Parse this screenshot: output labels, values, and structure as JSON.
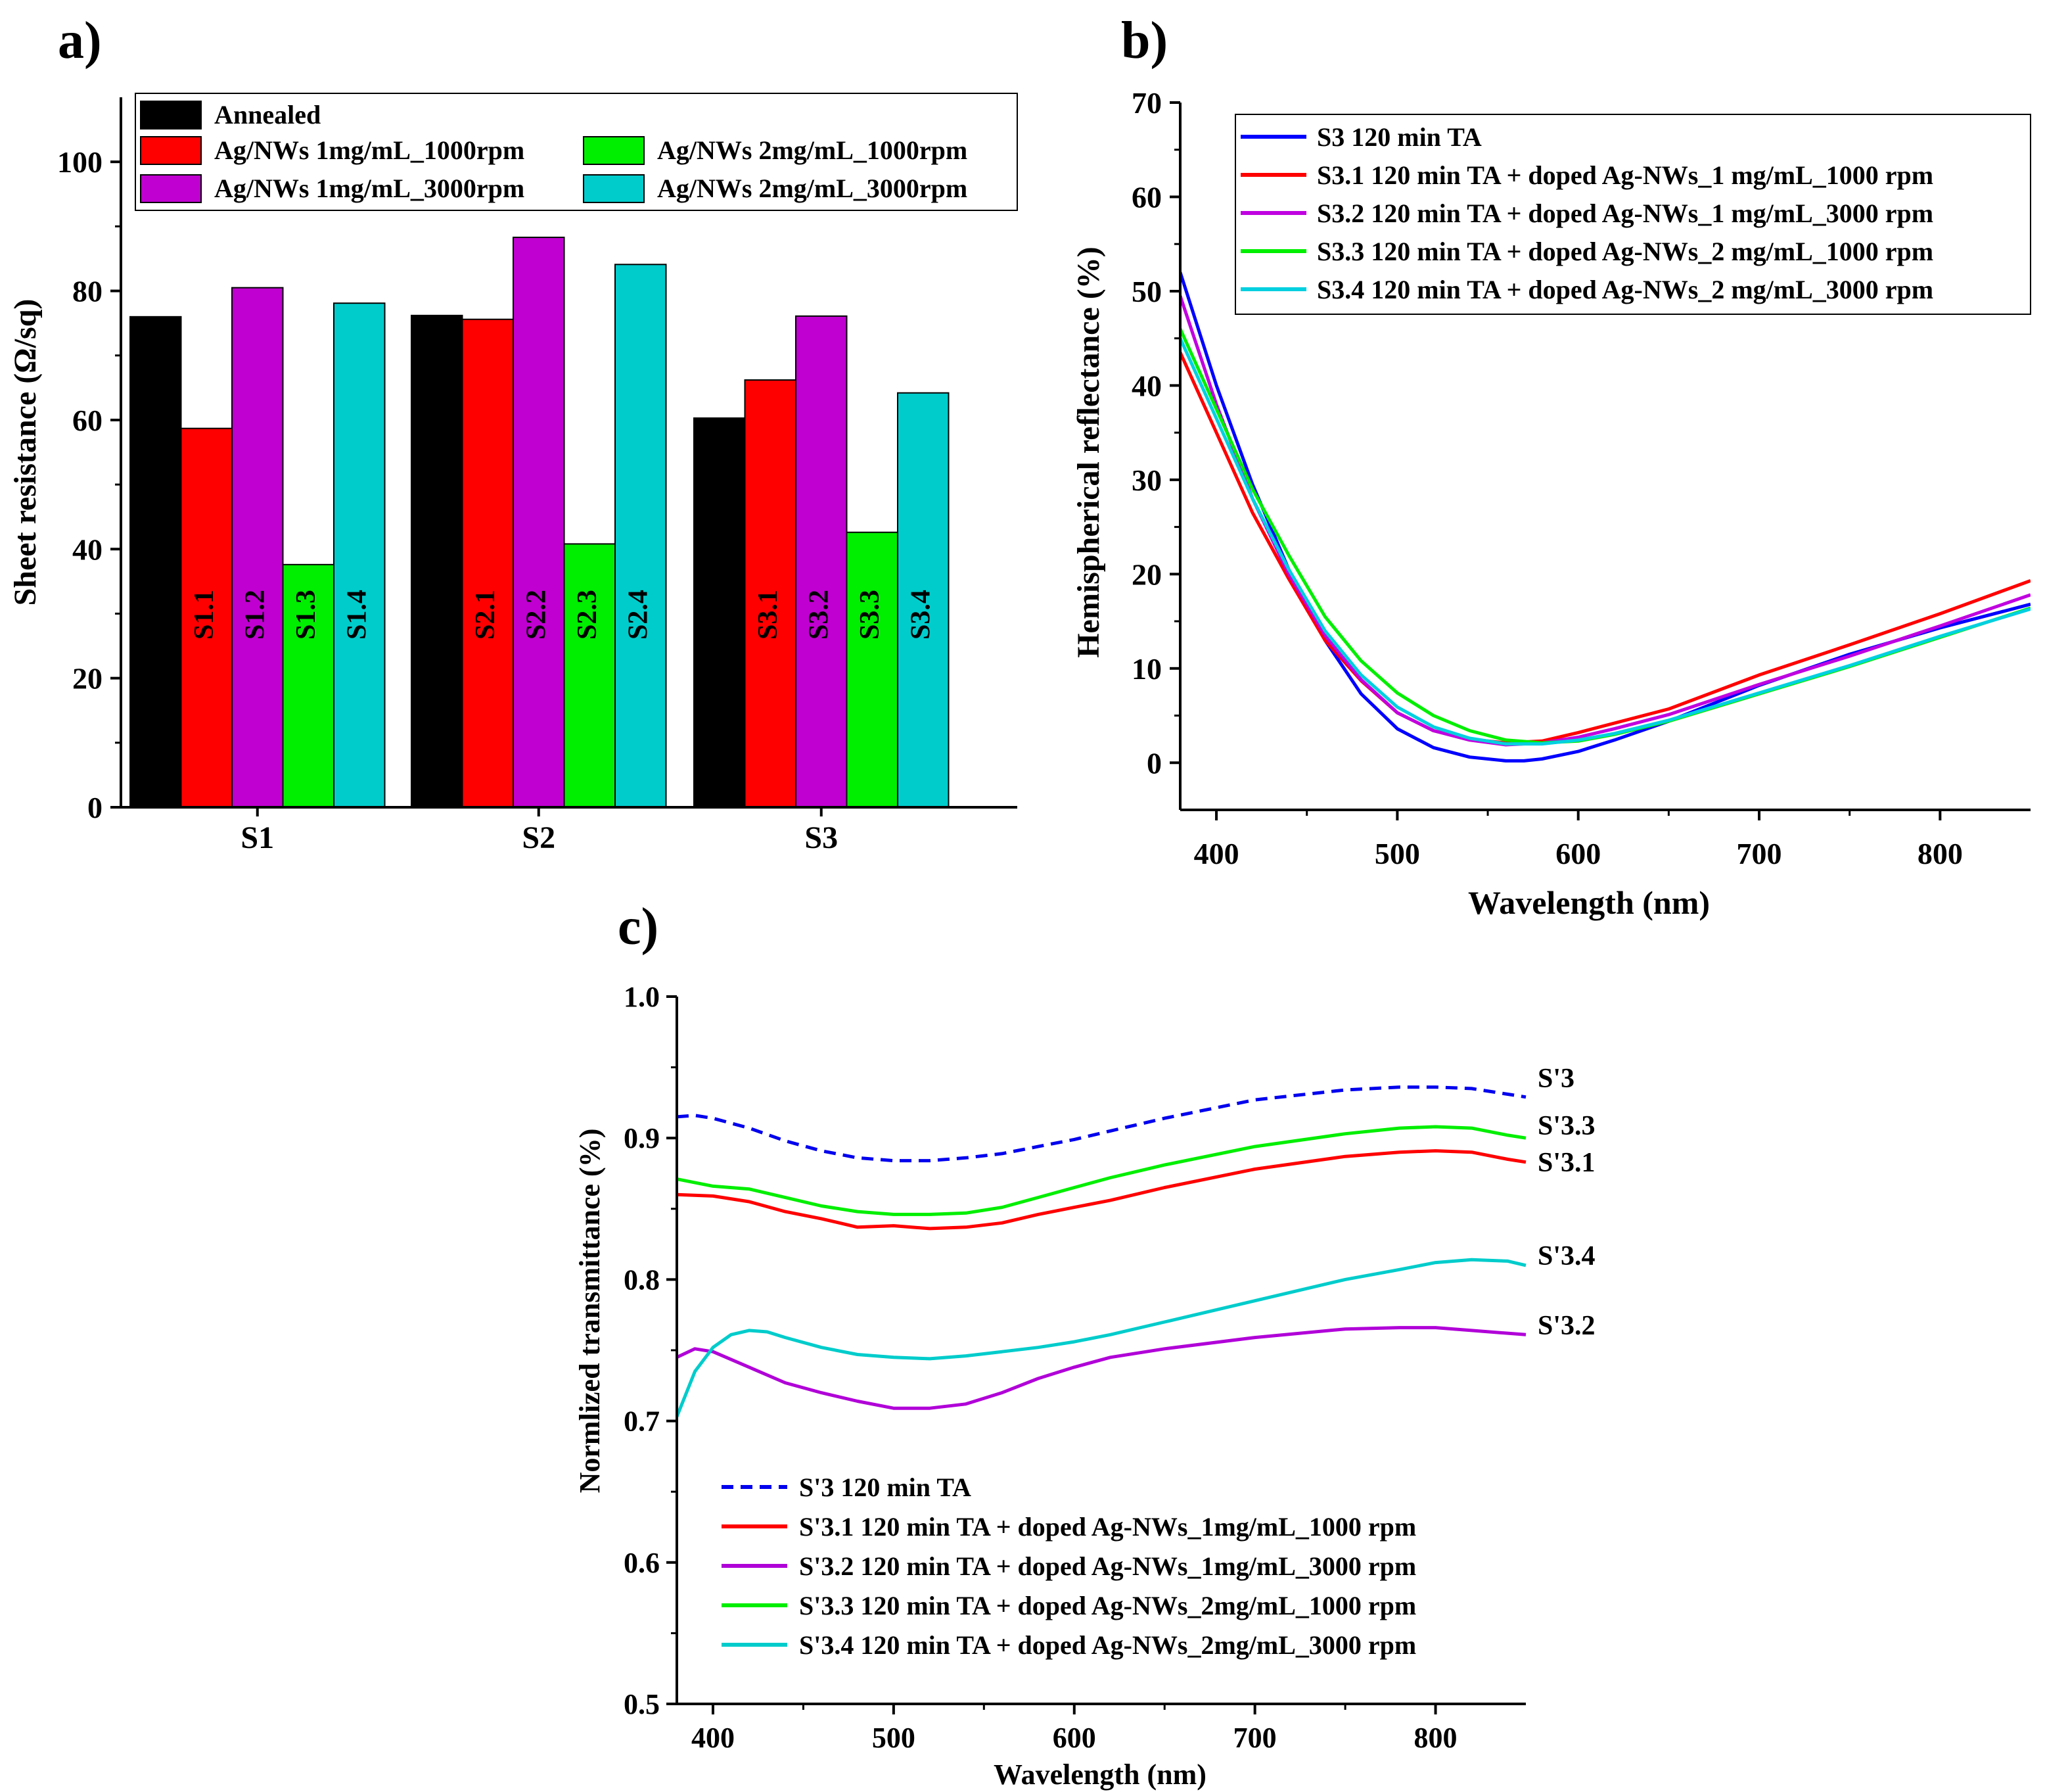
{
  "chart_data": [
    {
      "panel": "a)",
      "type": "bar",
      "title": "",
      "xlabel": "",
      "ylabel": "Sheet resistance  (Ω/sq)",
      "ylim": [
        0,
        110
      ],
      "yticks": [
        0,
        20,
        40,
        60,
        80,
        100
      ],
      "categories": [
        "S1",
        "S2",
        "S3"
      ],
      "series": [
        {
          "name": "Annealed",
          "color": "#000000",
          "values": [
            76,
            76.2,
            60.3
          ],
          "bar_labels": [
            "",
            "",
            ""
          ],
          "label_color": "#000000"
        },
        {
          "name": "Ag/NWs 1mg/mL_1000rpm",
          "color": "#ff0000",
          "values": [
            58.7,
            75.6,
            66.2
          ],
          "bar_labels": [
            "S1.1",
            "S2.1",
            "S3.1"
          ],
          "label_color": "#000000"
        },
        {
          "name": "Ag/NWs 1mg/mL_3000rpm",
          "color": "#c000d0",
          "values": [
            80.5,
            88.3,
            76.1
          ],
          "bar_labels": [
            "S1.2",
            "S2.2",
            "S3.2"
          ],
          "label_color": "#000000"
        },
        {
          "name": "Ag/NWs 2mg/mL_1000rpm",
          "color": "#00ee00",
          "values": [
            37.6,
            40.8,
            42.6
          ],
          "bar_labels": [
            "S1.3",
            "S2.3",
            "S3.3"
          ],
          "label_color": "#000000"
        },
        {
          "name": "Ag/NWs 2mg/mL_3000rpm",
          "color": "#00cccc",
          "values": [
            78.1,
            84.1,
            64.2
          ],
          "bar_labels": [
            "S1.4",
            "S2.4",
            "S3.4"
          ],
          "label_color": "#000000"
        }
      ],
      "legend_position": "top"
    },
    {
      "panel": "b)",
      "type": "line",
      "title": "",
      "xlabel": "Wavelength (nm)",
      "ylabel": "Hemispherical reflectance (%)",
      "xlim": [
        380,
        850
      ],
      "ylim": [
        -5,
        70
      ],
      "xticks": [
        400,
        500,
        600,
        700,
        800
      ],
      "yticks": [
        0,
        10,
        20,
        30,
        40,
        50,
        60,
        70
      ],
      "series": [
        {
          "name": "S3 120 min TA",
          "color": "#0000ff",
          "dash": false,
          "x": [
            380,
            400,
            420,
            440,
            460,
            480,
            500,
            520,
            540,
            560,
            570,
            580,
            600,
            620,
            650,
            700,
            750,
            800,
            850
          ],
          "y": [
            52,
            40,
            29.5,
            20.5,
            13,
            7.3,
            3.6,
            1.6,
            0.6,
            0.2,
            0.2,
            0.4,
            1.2,
            2.4,
            4.4,
            8.2,
            11.5,
            14.3,
            16.8
          ]
        },
        {
          "name": "S3.1 120 min TA + doped Ag-NWs_1 mg/mL_1000 rpm",
          "color": "#ff0000",
          "dash": false,
          "x": [
            380,
            400,
            420,
            440,
            460,
            480,
            500,
            520,
            540,
            560,
            580,
            600,
            620,
            650,
            700,
            750,
            800,
            850
          ],
          "y": [
            43.5,
            35,
            26.5,
            19.5,
            13,
            8.7,
            5.3,
            3.4,
            2.5,
            2.1,
            2.3,
            3.2,
            4.2,
            5.7,
            9.3,
            12.5,
            15.8,
            19.3
          ]
        },
        {
          "name": "S3.2 120 min TA + doped Ag-NWs_1 mg/mL_3000 rpm",
          "color": "#c000e0",
          "dash": false,
          "x": [
            380,
            400,
            420,
            440,
            460,
            480,
            500,
            520,
            540,
            560,
            580,
            600,
            620,
            650,
            700,
            750,
            800,
            850
          ],
          "y": [
            49.5,
            38,
            28,
            20,
            13.5,
            8.8,
            5.3,
            3.4,
            2.4,
            1.9,
            2.1,
            2.7,
            3.6,
            5.1,
            8.3,
            11.3,
            14.5,
            17.8
          ]
        },
        {
          "name": "S3.3 120 min TA + doped Ag-NWs_2 mg/mL_1000 rpm",
          "color": "#00ee00",
          "dash": false,
          "x": [
            380,
            400,
            420,
            440,
            460,
            480,
            500,
            520,
            540,
            560,
            580,
            600,
            620,
            650,
            700,
            750,
            800,
            850
          ],
          "y": [
            46,
            37.5,
            29,
            22,
            15.5,
            10.8,
            7.4,
            5,
            3.4,
            2.4,
            2.1,
            2.3,
            3,
            4.4,
            7.3,
            10.2,
            13.3,
            16.4
          ]
        },
        {
          "name": "S3.4 120 min TA + doped Ag-NWs_2 mg/mL_3000 rpm",
          "color": "#00d0e0",
          "dash": false,
          "x": [
            380,
            400,
            420,
            440,
            460,
            480,
            500,
            520,
            540,
            560,
            580,
            600,
            620,
            650,
            700,
            750,
            800,
            850
          ],
          "y": [
            45,
            36.5,
            28,
            20.5,
            14,
            9.3,
            5.9,
            3.8,
            2.6,
            2,
            2,
            2.4,
            3.1,
            4.5,
            7.4,
            10.3,
            13.4,
            16.3
          ]
        }
      ],
      "legend_position": "top-right"
    },
    {
      "panel": "c)",
      "type": "line",
      "title": "",
      "xlabel": "Wavelength (nm)",
      "ylabel": "Normlized transmittance (%)",
      "xlim": [
        380,
        850
      ],
      "ylim": [
        0.5,
        1.0
      ],
      "xticks": [
        400,
        500,
        600,
        700,
        800
      ],
      "yticks": [
        0.5,
        0.6,
        0.7,
        0.8,
        0.9,
        1.0
      ],
      "series": [
        {
          "name": "S'3 120 min TA",
          "end_label": "S'3",
          "color": "#0000ee",
          "dash": true,
          "x": [
            380,
            390,
            400,
            420,
            440,
            460,
            480,
            500,
            520,
            540,
            560,
            580,
            600,
            620,
            650,
            700,
            750,
            780,
            800,
            820,
            840,
            850
          ],
          "y": [
            0.915,
            0.916,
            0.914,
            0.907,
            0.898,
            0.891,
            0.886,
            0.884,
            0.884,
            0.886,
            0.889,
            0.894,
            0.899,
            0.905,
            0.914,
            0.927,
            0.934,
            0.936,
            0.936,
            0.935,
            0.931,
            0.929
          ]
        },
        {
          "name": "S'3.1 120 min TA + doped Ag-NWs_1mg/mL_1000 rpm",
          "end_label": "S'3.1",
          "color": "#ff0000",
          "dash": false,
          "x": [
            380,
            400,
            420,
            440,
            460,
            480,
            500,
            520,
            540,
            560,
            580,
            600,
            620,
            650,
            700,
            750,
            780,
            800,
            820,
            840,
            850
          ],
          "y": [
            0.86,
            0.859,
            0.855,
            0.848,
            0.843,
            0.837,
            0.838,
            0.836,
            0.837,
            0.84,
            0.846,
            0.851,
            0.856,
            0.865,
            0.878,
            0.887,
            0.89,
            0.891,
            0.89,
            0.885,
            0.883
          ]
        },
        {
          "name": "S'3.2 120 min TA + doped Ag-NWs_1mg/mL_3000 rpm",
          "end_label": "S'3.2",
          "color": "#b000d8",
          "dash": false,
          "x": [
            380,
            390,
            400,
            420,
            440,
            460,
            480,
            500,
            520,
            540,
            560,
            580,
            600,
            620,
            650,
            700,
            750,
            780,
            800,
            820,
            850
          ],
          "y": [
            0.745,
            0.751,
            0.749,
            0.738,
            0.727,
            0.72,
            0.714,
            0.709,
            0.709,
            0.712,
            0.72,
            0.73,
            0.738,
            0.745,
            0.751,
            0.759,
            0.765,
            0.766,
            0.766,
            0.764,
            0.761
          ]
        },
        {
          "name": "S'3.3 120 min TA + doped Ag-NWs_2mg/mL_1000 rpm",
          "end_label": "S'3.3",
          "color": "#00ee00",
          "dash": false,
          "x": [
            380,
            400,
            420,
            440,
            460,
            480,
            500,
            520,
            540,
            560,
            580,
            600,
            620,
            650,
            700,
            750,
            780,
            800,
            820,
            840,
            850
          ],
          "y": [
            0.871,
            0.866,
            0.864,
            0.858,
            0.852,
            0.848,
            0.846,
            0.846,
            0.847,
            0.851,
            0.858,
            0.865,
            0.872,
            0.881,
            0.894,
            0.903,
            0.907,
            0.908,
            0.907,
            0.902,
            0.9
          ]
        },
        {
          "name": "S'3.4 120 min TA + doped Ag-NWs_2mg/mL_3000 rpm",
          "end_label": "S'3.4",
          "color": "#00cccc",
          "dash": false,
          "x": [
            380,
            390,
            400,
            410,
            420,
            430,
            440,
            460,
            480,
            500,
            520,
            540,
            560,
            580,
            600,
            620,
            650,
            700,
            750,
            780,
            800,
            820,
            840,
            850
          ],
          "y": [
            0.703,
            0.735,
            0.752,
            0.761,
            0.764,
            0.763,
            0.759,
            0.752,
            0.747,
            0.745,
            0.744,
            0.746,
            0.749,
            0.752,
            0.756,
            0.761,
            0.77,
            0.785,
            0.8,
            0.807,
            0.812,
            0.814,
            0.813,
            0.81
          ]
        }
      ],
      "legend_position": "bottom-left"
    }
  ]
}
